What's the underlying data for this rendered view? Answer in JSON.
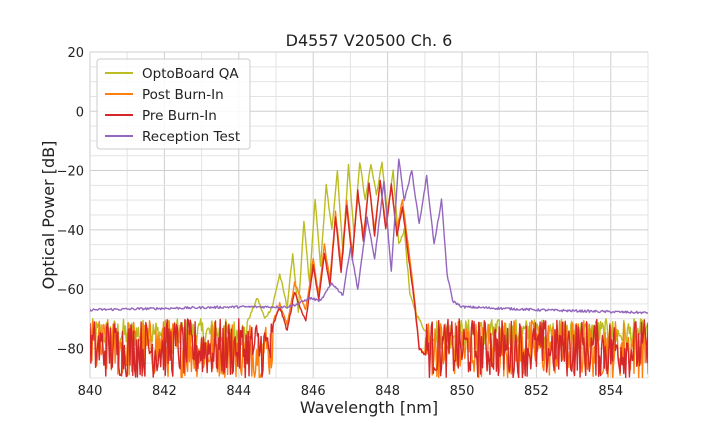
{
  "chart_data": {
    "type": "line",
    "title": "D4557 V20500 Ch. 6",
    "xlabel": "Wavelength [nm]",
    "ylabel": "Optical Power [dB]",
    "xlim": [
      840,
      855
    ],
    "ylim": [
      -90,
      20
    ],
    "xticks": [
      840,
      842,
      844,
      846,
      848,
      850,
      852,
      854
    ],
    "yticks": [
      -80,
      -60,
      -40,
      -20,
      0,
      20
    ],
    "xtick_labels": [
      "840",
      "842",
      "844",
      "846",
      "848",
      "850",
      "852",
      "854"
    ],
    "ytick_labels": [
      "−80",
      "−60",
      "−40",
      "−20",
      "0",
      "20"
    ],
    "grid": true,
    "legend_position": "top-left",
    "series": [
      {
        "name": "OptoBoard QA",
        "color": "#bcbd22",
        "noise_floor": -76,
        "noise_range": [
          -80,
          -70
        ],
        "x": [
          844.2,
          844.5,
          844.7,
          844.9,
          845.1,
          845.3,
          845.45,
          845.6,
          845.75,
          845.9,
          846.05,
          846.2,
          846.35,
          846.5,
          846.65,
          846.8,
          846.95,
          847.1,
          847.25,
          847.4,
          847.55,
          847.7,
          847.85,
          848.0,
          848.15,
          848.3,
          848.45,
          848.6,
          848.8,
          849.0,
          849.3
        ],
        "y": [
          -72,
          -63,
          -70,
          -66,
          -55,
          -66,
          -48,
          -68,
          -37,
          -58,
          -30,
          -52,
          -25,
          -40,
          -20,
          -48,
          -18,
          -42,
          -17,
          -30,
          -18,
          -28,
          -17,
          -35,
          -20,
          -45,
          -40,
          -62,
          -69,
          -74,
          -78
        ]
      },
      {
        "name": "Post Burn-In",
        "color": "#ff7f0e",
        "noise_floor": -80,
        "noise_range": [
          -90,
          -70
        ],
        "x": [
          844.9,
          845.1,
          845.3,
          845.5,
          845.8,
          846.0,
          846.15,
          846.3,
          846.45,
          846.6,
          846.75,
          846.9,
          847.05,
          847.2,
          847.35,
          847.5,
          847.65,
          847.8,
          847.95,
          848.1,
          848.25,
          848.4,
          848.55,
          848.7,
          848.85,
          849.0
        ],
        "y": [
          -72,
          -65,
          -72,
          -58,
          -67,
          -50,
          -62,
          -45,
          -57,
          -34,
          -52,
          -30,
          -48,
          -28,
          -42,
          -25,
          -40,
          -24,
          -38,
          -25,
          -40,
          -30,
          -45,
          -60,
          -80,
          -82
        ]
      },
      {
        "name": "Pre Burn-In",
        "color": "#d62728",
        "noise_floor": -80,
        "noise_range": [
          -90,
          -70
        ],
        "x": [
          844.9,
          845.1,
          845.3,
          845.5,
          845.8,
          846.0,
          846.15,
          846.3,
          846.45,
          846.6,
          846.75,
          846.9,
          847.05,
          847.2,
          847.35,
          847.5,
          847.65,
          847.8,
          847.95,
          848.1,
          848.25,
          848.4,
          848.55,
          848.7,
          848.85,
          849.0
        ],
        "y": [
          -73,
          -66,
          -74,
          -61,
          -71,
          -52,
          -64,
          -48,
          -59,
          -36,
          -54,
          -32,
          -50,
          -27,
          -44,
          -24,
          -42,
          -23,
          -40,
          -25,
          -42,
          -32,
          -48,
          -62,
          -80,
          -82
        ]
      },
      {
        "name": "Reception Test",
        "color": "#9467bd",
        "noise_floor": -67,
        "x": [
          840,
          842,
          844,
          845.0,
          845.3,
          845.6,
          845.9,
          846.2,
          846.5,
          846.8,
          847.0,
          847.2,
          847.45,
          847.65,
          847.9,
          848.1,
          848.3,
          848.45,
          848.65,
          848.85,
          849.05,
          849.25,
          849.45,
          849.6,
          849.75,
          850.0,
          852.0,
          855.0
        ],
        "y": [
          -67,
          -66.5,
          -66,
          -66,
          -66,
          -65,
          -63,
          -64,
          -58,
          -62,
          -46,
          -60,
          -36,
          -50,
          -24,
          -54,
          -16,
          -30,
          -20,
          -38,
          -22,
          -45,
          -30,
          -55,
          -64,
          -66,
          -67,
          -68
        ]
      }
    ]
  }
}
